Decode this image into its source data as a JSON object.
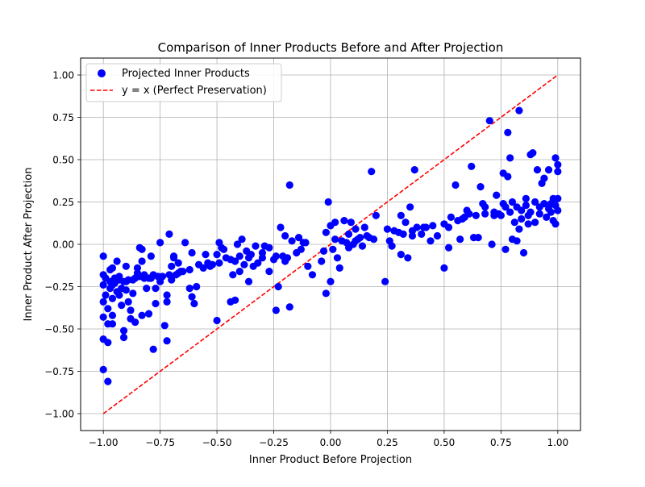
{
  "chart_data": {
    "type": "scatter",
    "title": "Comparison of Inner Products Before and After Projection",
    "xlabel": "Inner Product Before Projection",
    "ylabel": "Inner Product After Projection",
    "xlim": [
      -1.1,
      1.1
    ],
    "ylim": [
      -1.1,
      1.1
    ],
    "grid": true,
    "legend_position": "top-left",
    "xticks": [
      -1.0,
      -0.75,
      -0.5,
      -0.25,
      0.0,
      0.25,
      0.5,
      0.75,
      1.0
    ],
    "xtick_labels": [
      "−1.00",
      "−0.75",
      "−0.50",
      "−0.25",
      "0.00",
      "0.25",
      "0.50",
      "0.75",
      "1.00"
    ],
    "yticks": [
      -1.0,
      -0.75,
      -0.5,
      -0.25,
      0.0,
      0.25,
      0.5,
      0.75,
      1.0
    ],
    "ytick_labels": [
      "−1.00",
      "−0.75",
      "−0.50",
      "−0.25",
      "0.00",
      "0.25",
      "0.50",
      "0.75",
      "1.00"
    ],
    "series": [
      {
        "name": "Projected Inner Products",
        "kind": "scatter",
        "color": "#0000ff",
        "points": [
          [
            -1.0,
            -0.07
          ],
          [
            -1.0,
            -0.18
          ],
          [
            -1.0,
            -0.24
          ],
          [
            -1.0,
            -0.34
          ],
          [
            -1.0,
            -0.43
          ],
          [
            -1.0,
            -0.56
          ],
          [
            -1.0,
            -0.74
          ],
          [
            -0.98,
            -0.81
          ],
          [
            -0.98,
            -0.58
          ],
          [
            -0.98,
            -0.47
          ],
          [
            -0.99,
            -0.3
          ],
          [
            -0.99,
            -0.2
          ],
          [
            -0.97,
            -0.26
          ],
          [
            -0.97,
            -0.22
          ],
          [
            -0.96,
            -0.14
          ],
          [
            -0.96,
            -0.32
          ],
          [
            -0.96,
            -0.42
          ],
          [
            -0.96,
            -0.47
          ],
          [
            -0.95,
            -0.23
          ],
          [
            -0.94,
            -0.1
          ],
          [
            -0.94,
            -0.28
          ],
          [
            -0.93,
            -0.21
          ],
          [
            -0.92,
            -0.26
          ],
          [
            -0.92,
            -0.36
          ],
          [
            -0.91,
            -0.55
          ],
          [
            -0.91,
            -0.51
          ],
          [
            -0.9,
            -0.22
          ],
          [
            -0.9,
            -0.13
          ],
          [
            -0.89,
            -0.34
          ],
          [
            -0.88,
            -0.44
          ],
          [
            -0.88,
            -0.39
          ],
          [
            -0.87,
            -0.21
          ],
          [
            -0.86,
            -0.46
          ],
          [
            -0.85,
            -0.17
          ],
          [
            -0.85,
            -0.14
          ],
          [
            -0.84,
            -0.02
          ],
          [
            -0.83,
            -0.03
          ],
          [
            -0.83,
            -0.1
          ],
          [
            -0.83,
            -0.42
          ],
          [
            -0.82,
            -0.2
          ],
          [
            -0.81,
            -0.26
          ],
          [
            -0.8,
            -0.41
          ],
          [
            -0.79,
            -0.07
          ],
          [
            -0.79,
            -0.2
          ],
          [
            -0.78,
            -0.62
          ],
          [
            -0.77,
            -0.35
          ],
          [
            -0.77,
            -0.26
          ],
          [
            -0.76,
            -0.19
          ],
          [
            -0.75,
            0.01
          ],
          [
            -0.74,
            -0.19
          ],
          [
            -0.73,
            -0.48
          ],
          [
            -0.72,
            -0.57
          ],
          [
            -0.72,
            -0.34
          ],
          [
            -0.72,
            -0.3
          ],
          [
            -0.71,
            0.06
          ],
          [
            -0.71,
            -0.18
          ],
          [
            -0.7,
            -0.13
          ],
          [
            -0.7,
            -0.21
          ],
          [
            -0.69,
            -0.08
          ],
          [
            -0.69,
            -0.07
          ],
          [
            -0.67,
            -0.17
          ],
          [
            -0.67,
            -0.11
          ],
          [
            -0.65,
            -0.16
          ],
          [
            -0.64,
            0.01
          ],
          [
            -0.62,
            -0.15
          ],
          [
            -0.62,
            -0.26
          ],
          [
            -0.61,
            -0.05
          ],
          [
            -0.61,
            -0.31
          ],
          [
            -0.6,
            -0.35
          ],
          [
            -0.59,
            -0.25
          ],
          [
            -0.56,
            -0.14
          ],
          [
            -0.55,
            -0.06
          ],
          [
            -0.54,
            -0.11
          ],
          [
            -0.53,
            -0.13
          ],
          [
            -0.52,
            -0.12
          ],
          [
            -0.5,
            -0.06
          ],
          [
            -0.49,
            0.01
          ],
          [
            -0.5,
            -0.45
          ],
          [
            -0.49,
            -0.11
          ],
          [
            -0.48,
            -0.02
          ],
          [
            -0.46,
            -0.08
          ],
          [
            -0.44,
            -0.34
          ],
          [
            -0.43,
            -0.18
          ],
          [
            -0.42,
            -0.33
          ],
          [
            -0.42,
            -0.1
          ],
          [
            -0.41,
            0.0
          ],
          [
            -0.4,
            -0.16
          ],
          [
            -0.4,
            -0.07
          ],
          [
            -0.39,
            0.03
          ],
          [
            -0.38,
            -0.12
          ],
          [
            -0.37,
            -0.04
          ],
          [
            -0.36,
            -0.22
          ],
          [
            -0.35,
            -0.06
          ],
          [
            -0.34,
            -0.13
          ],
          [
            -0.33,
            -0.01
          ],
          [
            -0.32,
            -0.11
          ],
          [
            -0.3,
            -0.05
          ],
          [
            -0.3,
            -0.08
          ],
          [
            -0.29,
            -0.01
          ],
          [
            -0.27,
            -0.16
          ],
          [
            -0.25,
            -0.09
          ],
          [
            -0.24,
            -0.39
          ],
          [
            -0.23,
            -0.25
          ],
          [
            -0.22,
            0.1
          ],
          [
            -0.21,
            -0.07
          ],
          [
            -0.2,
            -0.1
          ],
          [
            -0.2,
            0.05
          ],
          [
            -0.19,
            -0.08
          ],
          [
            -0.18,
            -0.37
          ],
          [
            -0.18,
            0.35
          ],
          [
            -0.17,
            0.02
          ],
          [
            -0.15,
            -0.05
          ],
          [
            -0.14,
            0.04
          ],
          [
            -0.13,
            -0.03
          ],
          [
            -0.12,
            0.01
          ],
          [
            -0.1,
            -0.13
          ],
          [
            -0.08,
            -0.18
          ],
          [
            -0.04,
            -0.1
          ],
          [
            -0.03,
            -0.04
          ],
          [
            -0.02,
            -0.29
          ],
          [
            -0.01,
            0.25
          ],
          [
            0.0,
            -0.22
          ],
          [
            0.0,
            0.11
          ],
          [
            0.01,
            -0.03
          ],
          [
            0.02,
            0.13
          ],
          [
            0.03,
            -0.08
          ],
          [
            0.04,
            -0.14
          ],
          [
            0.06,
            0.14
          ],
          [
            0.07,
            0.01
          ],
          [
            0.08,
            -0.02
          ],
          [
            0.09,
            0.13
          ],
          [
            0.1,
            0.0
          ],
          [
            0.11,
            0.09
          ],
          [
            0.12,
            0.03
          ],
          [
            0.14,
            -0.01
          ],
          [
            0.15,
            0.1
          ],
          [
            0.17,
            0.04
          ],
          [
            0.18,
            0.43
          ],
          [
            0.2,
            0.17
          ],
          [
            0.24,
            -0.22
          ],
          [
            0.25,
            0.09
          ],
          [
            0.26,
            0.02
          ],
          [
            0.27,
            -0.01
          ],
          [
            0.3,
            0.07
          ],
          [
            0.31,
            -0.06
          ],
          [
            0.31,
            0.17
          ],
          [
            0.33,
            0.13
          ],
          [
            0.34,
            -0.08
          ],
          [
            0.35,
            0.22
          ],
          [
            0.36,
            0.05
          ],
          [
            0.37,
            0.44
          ],
          [
            0.38,
            0.1
          ],
          [
            0.4,
            0.06
          ],
          [
            0.42,
            0.1
          ],
          [
            0.44,
            0.02
          ],
          [
            0.45,
            0.11
          ],
          [
            0.47,
            0.05
          ],
          [
            0.5,
            -0.14
          ],
          [
            0.5,
            0.12
          ],
          [
            0.52,
            -0.02
          ],
          [
            0.53,
            0.16
          ],
          [
            0.55,
            0.35
          ],
          [
            0.57,
            0.03
          ],
          [
            0.58,
            0.15
          ],
          [
            0.6,
            0.2
          ],
          [
            0.62,
            0.46
          ],
          [
            0.63,
            0.04
          ],
          [
            0.65,
            0.04
          ],
          [
            0.66,
            0.34
          ],
          [
            0.67,
            0.24
          ],
          [
            0.68,
            0.18
          ],
          [
            0.7,
            0.73
          ],
          [
            0.71,
            0.0
          ],
          [
            0.72,
            0.19
          ],
          [
            0.73,
            0.29
          ],
          [
            0.75,
            0.17
          ],
          [
            0.76,
            0.42
          ],
          [
            0.77,
            -0.03
          ],
          [
            0.78,
            0.66
          ],
          [
            0.78,
            0.4
          ],
          [
            0.79,
            0.51
          ],
          [
            0.8,
            0.25
          ],
          [
            0.8,
            0.03
          ],
          [
            0.81,
            0.13
          ],
          [
            0.82,
            0.02
          ],
          [
            0.83,
            0.79
          ],
          [
            0.84,
            0.2
          ],
          [
            0.85,
            -0.05
          ],
          [
            0.86,
            0.27
          ],
          [
            0.87,
            0.17
          ],
          [
            0.88,
            0.53
          ],
          [
            0.89,
            0.54
          ],
          [
            0.9,
            0.13
          ],
          [
            0.91,
            0.44
          ],
          [
            0.92,
            0.22
          ],
          [
            0.93,
            0.36
          ],
          [
            0.94,
            0.39
          ],
          [
            0.95,
            0.16
          ],
          [
            0.96,
            0.44
          ],
          [
            0.97,
            0.24
          ],
          [
            0.98,
            0.14
          ],
          [
            0.99,
            0.51
          ],
          [
            1.0,
            0.47
          ],
          [
            1.0,
            0.43
          ],
          [
            0.99,
            0.12
          ],
          [
            1.0,
            0.27
          ],
          [
            1.0,
            0.2
          ],
          [
            0.99,
            0.23
          ],
          [
            -0.96,
            -0.24
          ],
          [
            -0.95,
            -0.2
          ],
          [
            -0.93,
            -0.19
          ],
          [
            -0.91,
            -0.22
          ],
          [
            -0.89,
            -0.21
          ],
          [
            -0.86,
            -0.2
          ],
          [
            -0.84,
            -0.19
          ],
          [
            -0.82,
            -0.18
          ],
          [
            -0.8,
            -0.2
          ],
          [
            -0.78,
            -0.18
          ],
          [
            -0.93,
            -0.3
          ],
          [
            -0.9,
            -0.27
          ],
          [
            -0.87,
            -0.29
          ],
          [
            -0.75,
            -0.22
          ],
          [
            -0.68,
            -0.18
          ],
          [
            -0.66,
            -0.16
          ],
          [
            -0.58,
            -0.12
          ],
          [
            -0.47,
            -0.03
          ],
          [
            -0.44,
            -0.09
          ],
          [
            -0.36,
            -0.08
          ],
          [
            -0.27,
            -0.02
          ],
          [
            -0.24,
            -0.07
          ],
          [
            -0.11,
            0.01
          ],
          [
            0.05,
            0.02
          ],
          [
            0.08,
            0.06
          ],
          [
            0.11,
            0.02
          ],
          [
            0.13,
            0.04
          ],
          [
            0.16,
            0.05
          ],
          [
            0.19,
            0.03
          ],
          [
            0.28,
            0.08
          ],
          [
            0.32,
            0.06
          ],
          [
            0.36,
            0.08
          ],
          [
            0.41,
            0.1
          ],
          [
            0.52,
            0.1
          ],
          [
            0.56,
            0.14
          ],
          [
            0.59,
            0.16
          ],
          [
            0.61,
            0.18
          ],
          [
            0.64,
            0.17
          ],
          [
            0.68,
            0.22
          ],
          [
            0.74,
            0.18
          ],
          [
            0.77,
            0.22
          ],
          [
            0.79,
            0.19
          ],
          [
            0.82,
            0.22
          ],
          [
            0.84,
            0.15
          ],
          [
            0.86,
            0.23
          ],
          [
            0.88,
            0.19
          ],
          [
            0.9,
            0.25
          ],
          [
            0.92,
            0.18
          ],
          [
            0.94,
            0.24
          ],
          [
            0.96,
            0.21
          ],
          [
            0.98,
            0.27
          ],
          [
            0.97,
            0.19
          ],
          [
            -0.98,
            -0.38
          ],
          [
            -0.97,
            -0.15
          ],
          [
            0.87,
            0.12
          ],
          [
            0.83,
            0.09
          ],
          [
            0.76,
            0.24
          ],
          [
            0.72,
            0.17
          ],
          [
            -0.02,
            0.07
          ],
          [
            0.02,
            0.03
          ]
        ]
      },
      {
        "name": "y = x (Perfect Preservation)",
        "kind": "line",
        "style": "dashed",
        "color": "#ff0000",
        "points": [
          [
            -1.0,
            -1.0
          ],
          [
            1.0,
            1.0
          ]
        ]
      }
    ]
  }
}
